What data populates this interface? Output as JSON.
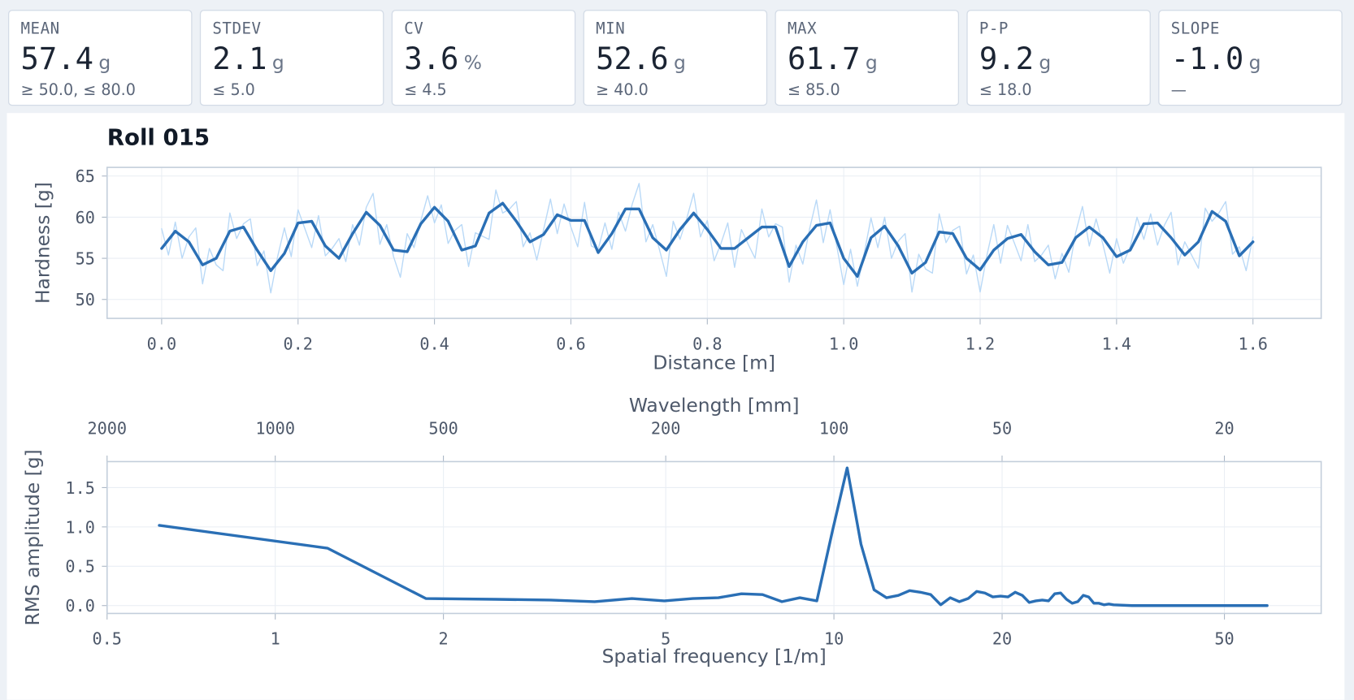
{
  "stats": [
    {
      "label": "MEAN",
      "value": "57.4",
      "unit": "g",
      "limit": "≥ 50.0,  ≤ 80.0"
    },
    {
      "label": "STDEV",
      "value": "2.1",
      "unit": "g",
      "limit": "≤ 5.0"
    },
    {
      "label": "CV",
      "value": "3.6",
      "unit": "%",
      "limit": "≤ 4.5"
    },
    {
      "label": "MIN",
      "value": "52.6",
      "unit": "g",
      "limit": "≥ 40.0"
    },
    {
      "label": "MAX",
      "value": "61.7",
      "unit": "g",
      "limit": "≤ 85.0"
    },
    {
      "label": "P-P",
      "value": "9.2",
      "unit": "g",
      "limit": "≤ 18.0"
    },
    {
      "label": "SLOPE",
      "value": "-1.0",
      "unit": "g",
      "limit": "—"
    }
  ],
  "chart_data": [
    {
      "type": "line",
      "title": "Roll 015",
      "xlabel": "Distance [m]",
      "ylabel": "Hardness [g]",
      "xlim": [
        -0.08,
        1.7
      ],
      "ylim": [
        47.7,
        66.05
      ],
      "xticks": [
        {
          "value": 0,
          "label": "0.0"
        },
        0.2,
        0.4,
        0.6,
        0.8,
        {
          "value": 1,
          "label": "1.0"
        },
        1.2,
        1.4,
        1.6
      ],
      "yticks": [
        50,
        55,
        60,
        65
      ],
      "grid": true,
      "series": [
        {
          "color": "#b9d9f7",
          "width": 1.3,
          "x": [
            0,
            0.01,
            0.02,
            0.03,
            0.04,
            0.05,
            0.06,
            0.07,
            0.08,
            0.09,
            0.1,
            0.11,
            0.12,
            0.13,
            0.14,
            0.15,
            0.16,
            0.17,
            0.18,
            0.19,
            0.2,
            0.21,
            0.22,
            0.23,
            0.24,
            0.25,
            0.26,
            0.27,
            0.28,
            0.29,
            0.3,
            0.31,
            0.32,
            0.33,
            0.34,
            0.35,
            0.36,
            0.37,
            0.38,
            0.39,
            0.4,
            0.41,
            0.42,
            0.43,
            0.44,
            0.45,
            0.46,
            0.47,
            0.48,
            0.49,
            0.5,
            0.51,
            0.52,
            0.53,
            0.54,
            0.55,
            0.56,
            0.57,
            0.58,
            0.59,
            0.6,
            0.61,
            0.62,
            0.63,
            0.64,
            0.65,
            0.66,
            0.67,
            0.68,
            0.69,
            0.7,
            0.71,
            0.72,
            0.73,
            0.74,
            0.75,
            0.76,
            0.77,
            0.78,
            0.79,
            0.8,
            0.81,
            0.82,
            0.83,
            0.84,
            0.85,
            0.86,
            0.87,
            0.88,
            0.89,
            0.9,
            0.91,
            0.92,
            0.93,
            0.94,
            0.95,
            0.96,
            0.97,
            0.98,
            0.99,
            1,
            1.01,
            1.02,
            1.03,
            1.04,
            1.05,
            1.06,
            1.07,
            1.08,
            1.09,
            1.1,
            1.11,
            1.12,
            1.13,
            1.14,
            1.15,
            1.16,
            1.17,
            1.18,
            1.19,
            1.2,
            1.21,
            1.22,
            1.23,
            1.24,
            1.25,
            1.26,
            1.27,
            1.28,
            1.29,
            1.3,
            1.31,
            1.32,
            1.33,
            1.34,
            1.35,
            1.36,
            1.37,
            1.38,
            1.39,
            1.4,
            1.41,
            1.42,
            1.43,
            1.44,
            1.45,
            1.46,
            1.47,
            1.48,
            1.49,
            1.5,
            1.51,
            1.52,
            1.53,
            1.54,
            1.55,
            1.56,
            1.57,
            1.58,
            1.59,
            1.6
          ],
          "values": [
            58.6,
            55.4,
            59.4,
            55.0,
            57.6,
            58.7,
            51.9,
            56.2,
            54.2,
            53.5,
            60.5,
            57.4,
            59.2,
            59.8,
            54.1,
            55.9,
            50.8,
            55.2,
            58.7,
            55.2,
            60.9,
            58.6,
            56.3,
            60.2,
            55.3,
            56.2,
            57.4,
            54.6,
            59.1,
            56.6,
            61.2,
            62.9,
            56.7,
            59.1,
            55.2,
            52.7,
            58.0,
            56.3,
            59.6,
            62.6,
            59.3,
            61.5,
            56.8,
            58.4,
            59.1,
            54.0,
            58.1,
            57.7,
            57.3,
            63.3,
            60.5,
            61.0,
            61.9,
            56.4,
            58.1,
            54.8,
            58.5,
            62.2,
            58.0,
            61.6,
            58.8,
            56.4,
            61.8,
            56.5,
            56.1,
            59.3,
            56.1,
            60.6,
            58.3,
            61.6,
            64.1,
            57.0,
            59.1,
            56.0,
            52.8,
            59.5,
            57.3,
            59.9,
            62.9,
            57.6,
            59.6,
            54.7,
            56.8,
            59.3,
            53.9,
            58.5,
            56.7,
            55.0,
            61.0,
            57.6,
            59.2,
            58.8,
            52.1,
            56.6,
            54.3,
            58.6,
            62.1,
            56.9,
            60.9,
            56.4,
            51.8,
            56.1,
            51.6,
            55.6,
            59.9,
            56.3,
            60.0,
            55.0,
            57.1,
            58.0,
            50.9,
            55.5,
            53.7,
            53.2,
            60.4,
            56.9,
            58.4,
            58.9,
            53.1,
            55.4,
            50.9,
            55.4,
            59.1,
            54.4,
            59.0,
            56.9,
            54.7,
            59.1,
            54.6,
            55.4,
            56.6,
            52.5,
            55.6,
            53.3,
            58.1,
            61.3,
            56.5,
            59.8,
            56.7,
            53.2,
            57.4,
            54.4,
            56.4,
            60.0,
            57.3,
            60.4,
            56.6,
            59.0,
            60.6,
            54.2,
            57.0,
            55.4,
            53.8,
            61.1,
            59.5,
            60.5,
            61.9,
            55.5,
            56.4,
            53.5,
            57.6
          ]
        },
        {
          "color": "#2a6fb5",
          "width": 3.2,
          "x": [
            0,
            0.02,
            0.04,
            0.06,
            0.08,
            0.1,
            0.12,
            0.14,
            0.16,
            0.18,
            0.2,
            0.22,
            0.24,
            0.26,
            0.28,
            0.3,
            0.32,
            0.34,
            0.36,
            0.38,
            0.4,
            0.42,
            0.44,
            0.46,
            0.48,
            0.5,
            0.52,
            0.54,
            0.56,
            0.58,
            0.6,
            0.62,
            0.64,
            0.66,
            0.68,
            0.7,
            0.72,
            0.74,
            0.76,
            0.78,
            0.8,
            0.82,
            0.84,
            0.86,
            0.88,
            0.9,
            0.92,
            0.94,
            0.96,
            0.98,
            1,
            1.02,
            1.04,
            1.06,
            1.08,
            1.1,
            1.12,
            1.14,
            1.16,
            1.18,
            1.2,
            1.22,
            1.24,
            1.26,
            1.28,
            1.3,
            1.32,
            1.34,
            1.36,
            1.38,
            1.4,
            1.42,
            1.44,
            1.46,
            1.48,
            1.5,
            1.52,
            1.54,
            1.56,
            1.58,
            1.6
          ],
          "values": [
            56.2,
            58.3,
            57.0,
            54.2,
            55.0,
            58.3,
            58.8,
            56.0,
            53.5,
            55.6,
            59.3,
            59.5,
            56.5,
            55.0,
            58.0,
            60.6,
            59.0,
            56.0,
            55.8,
            59.2,
            61.2,
            59.5,
            56.0,
            56.5,
            60.5,
            61.7,
            59.5,
            57.0,
            57.9,
            60.3,
            59.6,
            59.6,
            55.7,
            58.0,
            61.0,
            61.0,
            57.5,
            56.0,
            58.5,
            60.5,
            58.5,
            56.2,
            56.2,
            57.5,
            58.8,
            58.8,
            54.0,
            57.0,
            59.0,
            59.3,
            55.0,
            52.8,
            57.5,
            58.9,
            56.5,
            53.2,
            54.5,
            58.2,
            58.0,
            55.0,
            53.6,
            56.0,
            57.4,
            57.9,
            55.8,
            54.2,
            54.5,
            57.5,
            58.8,
            57.5,
            55.2,
            56.0,
            59.2,
            59.3,
            57.5,
            55.4,
            57.0,
            60.7,
            59.5,
            55.3,
            57.0
          ]
        }
      ]
    },
    {
      "type": "line",
      "xscale": "log",
      "xlabel": "Spatial frequency [1/m]",
      "ylabel": "RMS amplitude [g]",
      "x2label": "Wavelength [mm]",
      "x2scale": "log",
      "x2lim": [
        2000,
        13.42
      ],
      "x2ticks": [
        2000,
        1000,
        500,
        200,
        100,
        50,
        20
      ],
      "xlim": [
        0.5,
        74.5
      ],
      "ylim": [
        -0.1,
        1.83
      ],
      "xticks": [
        0.5,
        1,
        2,
        5,
        10,
        20,
        50
      ],
      "yticks": [
        {
          "value": 0,
          "label": "0.0"
        },
        0.5,
        {
          "value": 1,
          "label": "1.0"
        },
        1.5
      ],
      "grid": true,
      "series": [
        {
          "color": "#2a6fb5",
          "width": 3.2,
          "x": [
            0.62,
            1.24,
            1.86,
            2.48,
            3.11,
            3.73,
            4.35,
            4.97,
            5.59,
            6.21,
            6.83,
            7.45,
            8.07,
            8.69,
            9.32,
            9.94,
            10.56,
            11.18,
            11.8,
            12.42,
            13.04,
            13.66,
            14.28,
            14.9,
            15.53,
            16.15,
            16.77,
            17.39,
            18.01,
            18.63,
            19.25,
            19.87,
            20.49,
            21.11,
            21.74,
            22.36,
            22.98,
            23.6,
            24.22,
            24.84,
            25.46,
            26.08,
            26.7,
            27.32,
            27.95,
            28.57,
            29.19,
            29.81,
            30.43,
            31.05,
            31.67,
            34.16,
            37.27,
            43.48,
            49.69,
            59.63
          ],
          "values": [
            1.02,
            0.73,
            0.09,
            0.08,
            0.07,
            0.05,
            0.09,
            0.06,
            0.09,
            0.1,
            0.15,
            0.14,
            0.05,
            0.1,
            0.06,
            0.95,
            1.75,
            0.78,
            0.2,
            0.1,
            0.13,
            0.19,
            0.17,
            0.14,
            0.01,
            0.1,
            0.05,
            0.09,
            0.18,
            0.16,
            0.11,
            0.12,
            0.11,
            0.17,
            0.13,
            0.04,
            0.06,
            0.07,
            0.06,
            0.15,
            0.16,
            0.08,
            0.03,
            0.05,
            0.13,
            0.11,
            0.03,
            0.03,
            0.01,
            0.02,
            0.01,
            0,
            0,
            0,
            0,
            0
          ]
        }
      ]
    }
  ]
}
